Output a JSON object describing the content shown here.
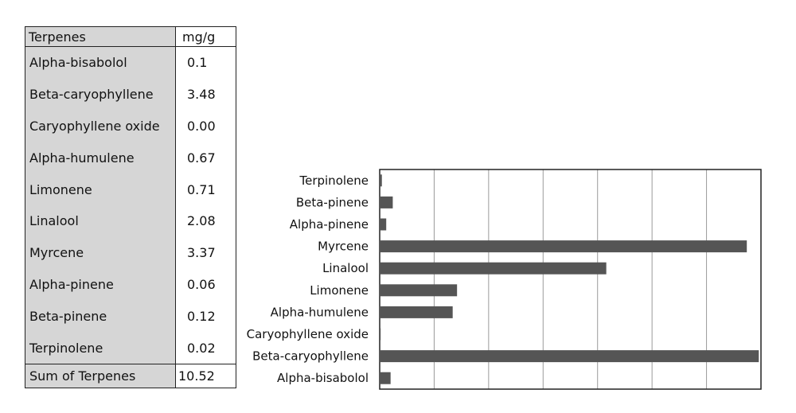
{
  "table": {
    "header": {
      "name": "Terpenes",
      "unit": "mg/g"
    },
    "rows": [
      {
        "name": "Alpha-bisabolol",
        "value": "0.1"
      },
      {
        "name": "Beta-caryophyllene",
        "value": "3.48"
      },
      {
        "name": "Caryophyllene oxide",
        "value": "0.00"
      },
      {
        "name": "Alpha-humulene",
        "value": "0.67"
      },
      {
        "name": "Limonene",
        "value": "0.71"
      },
      {
        "name": "Linalool",
        "value": "2.08"
      },
      {
        "name": "Myrcene",
        "value": "3.37"
      },
      {
        "name": "Alpha-pinene",
        "value": "0.06"
      },
      {
        "name": "Beta-pinene",
        "value": "0.12"
      },
      {
        "name": "Terpinolene",
        "value": "0.02"
      }
    ],
    "sum": {
      "name": "Sum of Terpenes",
      "value": "10.52"
    }
  },
  "chart_data": {
    "type": "bar",
    "orientation": "horizontal",
    "categories": [
      "Terpinolene",
      "Beta-pinene",
      "Alpha-pinene",
      "Myrcene",
      "Linalool",
      "Limonene",
      "Alpha-humulene",
      "Caryophyllene oxide",
      "Beta-caryophyllene",
      "Alpha-bisabolol"
    ],
    "values": [
      0.02,
      0.12,
      0.06,
      3.37,
      2.08,
      0.71,
      0.67,
      0.0,
      3.48,
      0.1
    ],
    "xlim": [
      0,
      3.5
    ],
    "grid": true,
    "bar_color": "#555555",
    "title": "",
    "xlabel": "",
    "ylabel": ""
  }
}
